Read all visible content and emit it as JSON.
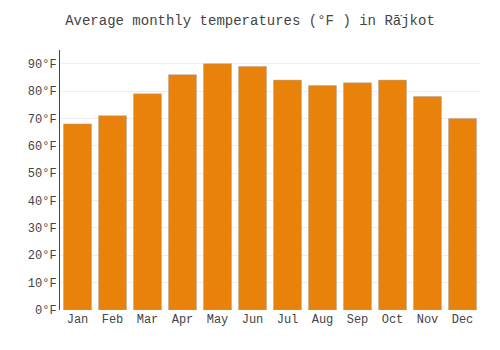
{
  "chart_data": {
    "type": "bar",
    "title": "Average monthly temperatures (°F ) in Rā̇jkot",
    "categories": [
      "Jan",
      "Feb",
      "Mar",
      "Apr",
      "May",
      "Jun",
      "Jul",
      "Aug",
      "Sep",
      "Oct",
      "Nov",
      "Dec"
    ],
    "values": [
      68,
      71,
      79,
      86,
      90,
      89,
      84,
      82,
      83,
      84,
      78,
      70
    ],
    "color": "#E8820A",
    "ylim": [
      0,
      95
    ],
    "yticks": [
      {
        "value": 0,
        "label": "0°F"
      },
      {
        "value": 10,
        "label": "10°F"
      },
      {
        "value": 20,
        "label": "20°F"
      },
      {
        "value": 30,
        "label": "30°F"
      },
      {
        "value": 40,
        "label": "40°F"
      },
      {
        "value": 50,
        "label": "50°F"
      },
      {
        "value": 60,
        "label": "60°F"
      },
      {
        "value": 70,
        "label": "70°F"
      },
      {
        "value": 80,
        "label": "80°F"
      },
      {
        "value": 90,
        "label": "90°F"
      }
    ],
    "grid": true
  }
}
